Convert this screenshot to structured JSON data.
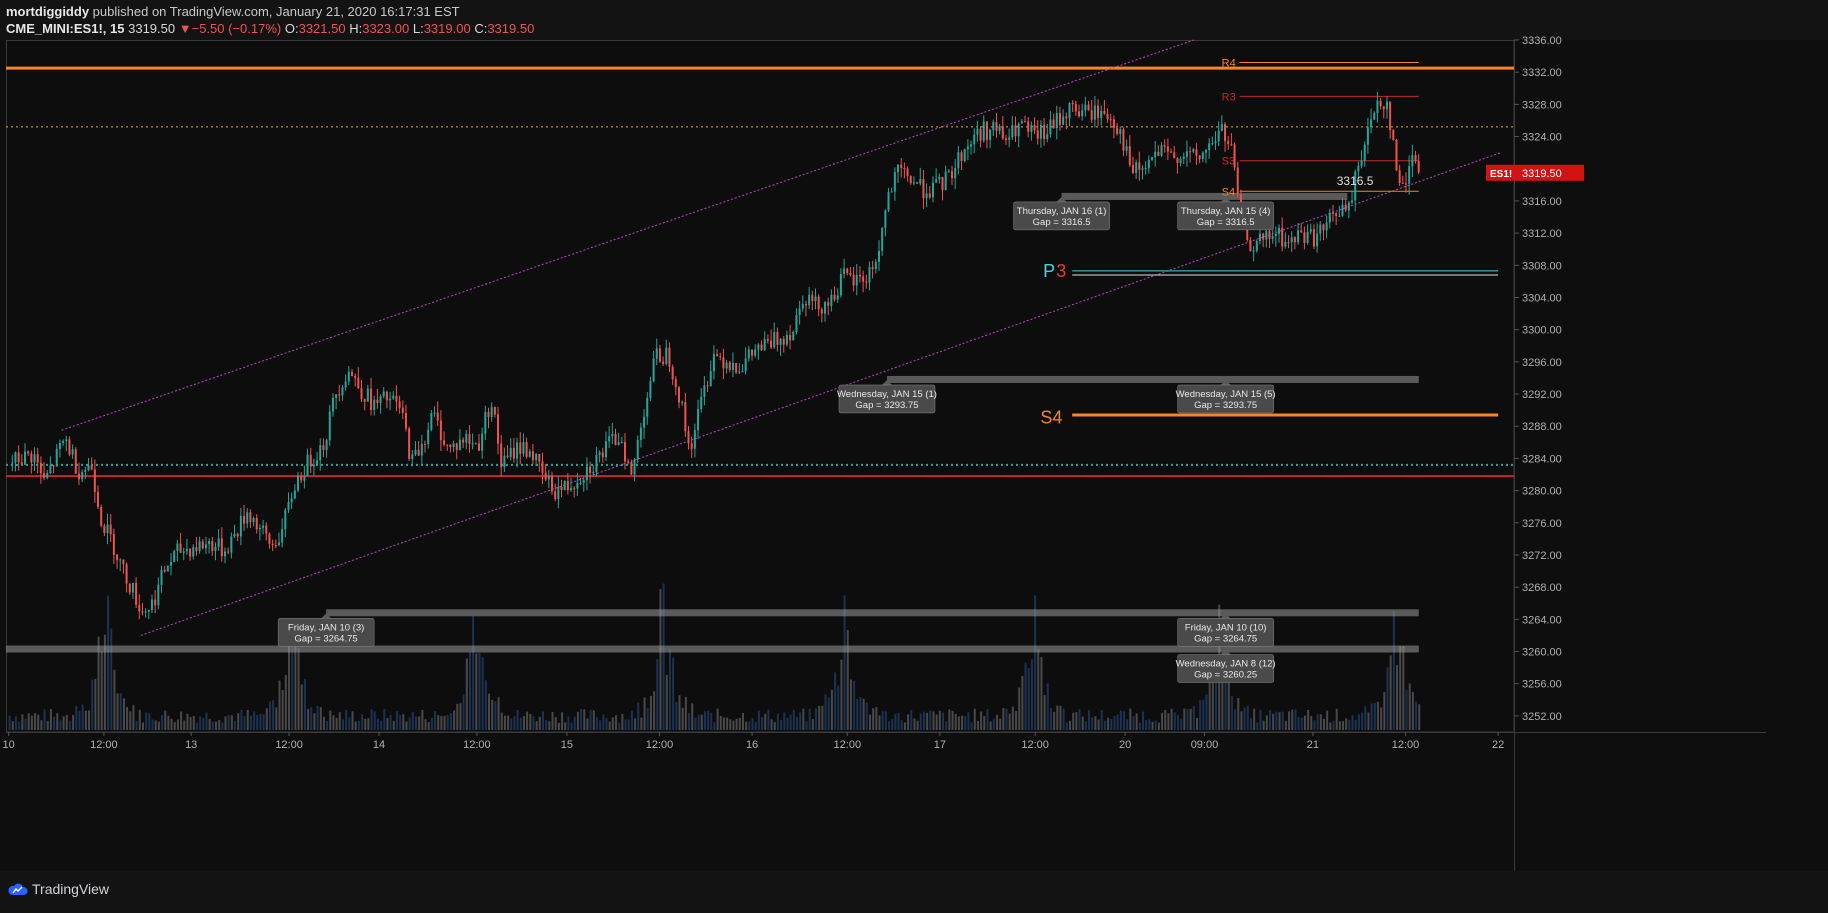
{
  "header": {
    "author": "mortdiggiddy",
    "published_text": "published on TradingView.com, January 21, 2020 16:17:31 EST",
    "symbol": "CME_MINI:ES1!, 15",
    "last": "3319.50",
    "change": "−5.50 (−0.17%)",
    "o_label": "O:",
    "o_value": "3321.50",
    "h_label": "H:",
    "h_value": "3323.00",
    "l_label": "L:",
    "l_value": "3319.00",
    "c_label": "C:",
    "c_value": "3319.50"
  },
  "footer": {
    "brand": "TradingView"
  },
  "colors": {
    "background": "#0e0e0e",
    "up": "#26a69a",
    "down": "#ef5350",
    "orange": "#f5842c",
    "channel": "#c040d0",
    "price_badge": "#d11313",
    "gap_bar": "#9a9a9a"
  },
  "chart_data": {
    "type": "candlestick",
    "symbol": "ES1!",
    "interval": "15",
    "ylim": [
      3250,
      3336
    ],
    "y_ticks": [
      "3336.00",
      "3332.00",
      "3328.00",
      "3324.00",
      "3320.00",
      "3316.00",
      "3312.00",
      "3308.00",
      "3304.00",
      "3300.00",
      "3296.00",
      "3292.00",
      "3288.00",
      "3284.00",
      "3280.00",
      "3276.00",
      "3272.00",
      "3268.00",
      "3264.00",
      "3260.00",
      "3256.00",
      "3252.00"
    ],
    "x_ticks": [
      {
        "label": "10",
        "t": 0
      },
      {
        "label": "12:00",
        "t": 3.6
      },
      {
        "label": "13",
        "t": 6.9
      },
      {
        "label": "12:00",
        "t": 10.6
      },
      {
        "label": "14",
        "t": 14.0
      },
      {
        "label": "12:00",
        "t": 17.7
      },
      {
        "label": "15",
        "t": 21.1
      },
      {
        "label": "12:00",
        "t": 24.6
      },
      {
        "label": "16",
        "t": 28.1
      },
      {
        "label": "12:00",
        "t": 31.7
      },
      {
        "label": "17",
        "t": 35.2
      },
      {
        "label": "12:00",
        "t": 38.8
      },
      {
        "label": "20",
        "t": 42.2
      },
      {
        "label": "09:00",
        "t": 45.2
      },
      {
        "label": "21",
        "t": 49.3
      },
      {
        "label": "12:00",
        "t": 52.8
      },
      {
        "label": "22",
        "t": 56.3
      }
    ],
    "x_range": [
      -0.1,
      56.9
    ],
    "path_points": [
      [
        0.0,
        3283.5
      ],
      [
        0.9,
        3284.5
      ],
      [
        1.3,
        3281.0
      ],
      [
        2.1,
        3286.5
      ],
      [
        2.6,
        3282.5
      ],
      [
        3.1,
        3283.0
      ],
      [
        3.5,
        3276.0
      ],
      [
        3.9,
        3273.5
      ],
      [
        4.3,
        3270.0
      ],
      [
        4.6,
        3268.0
      ],
      [
        5.0,
        3265.0
      ],
      [
        5.4,
        3266.0
      ],
      [
        5.9,
        3270.5
      ],
      [
        6.4,
        3272.5
      ],
      [
        7.0,
        3273.0
      ],
      [
        7.6,
        3273.5
      ],
      [
        8.1,
        3272.5
      ],
      [
        8.6,
        3275.0
      ],
      [
        9.0,
        3277.5
      ],
      [
        9.4,
        3275.5
      ],
      [
        9.9,
        3273.0
      ],
      [
        10.3,
        3275.0
      ],
      [
        10.8,
        3281.0
      ],
      [
        11.3,
        3283.5
      ],
      [
        11.9,
        3286.0
      ],
      [
        12.3,
        3292.0
      ],
      [
        12.8,
        3295.0
      ],
      [
        13.3,
        3292.5
      ],
      [
        13.8,
        3290.5
      ],
      [
        14.3,
        3291.5
      ],
      [
        14.8,
        3290.0
      ],
      [
        15.2,
        3283.5
      ],
      [
        15.6,
        3286.0
      ],
      [
        16.0,
        3289.5
      ],
      [
        16.6,
        3285.0
      ],
      [
        17.2,
        3286.5
      ],
      [
        17.7,
        3285.5
      ],
      [
        18.2,
        3291.5
      ],
      [
        18.6,
        3283.0
      ],
      [
        19.2,
        3285.5
      ],
      [
        19.7,
        3285.0
      ],
      [
        20.1,
        3282.0
      ],
      [
        20.6,
        3280.0
      ],
      [
        21.1,
        3280.5
      ],
      [
        21.6,
        3282.0
      ],
      [
        22.1,
        3283.5
      ],
      [
        22.6,
        3285.5
      ],
      [
        23.1,
        3287.0
      ],
      [
        23.5,
        3281.5
      ],
      [
        23.9,
        3289.0
      ],
      [
        24.4,
        3296.5
      ],
      [
        24.9,
        3297.0
      ],
      [
        25.3,
        3292.0
      ],
      [
        25.7,
        3285.0
      ],
      [
        26.1,
        3290.5
      ],
      [
        26.6,
        3297.0
      ],
      [
        27.2,
        3296.0
      ],
      [
        27.7,
        3295.5
      ],
      [
        28.2,
        3297.5
      ],
      [
        28.6,
        3298.0
      ],
      [
        29.1,
        3299.0
      ],
      [
        29.6,
        3300.0
      ],
      [
        30.0,
        3304.5
      ],
      [
        30.5,
        3303.0
      ],
      [
        31.0,
        3303.5
      ],
      [
        31.5,
        3306.5
      ],
      [
        31.9,
        3306.0
      ],
      [
        32.4,
        3306.5
      ],
      [
        32.8,
        3309.0
      ],
      [
        33.2,
        3316.5
      ],
      [
        33.6,
        3319.5
      ],
      [
        34.0,
        3319.0
      ],
      [
        34.5,
        3317.5
      ],
      [
        35.0,
        3317.5
      ],
      [
        35.5,
        3319.0
      ],
      [
        36.0,
        3322.0
      ],
      [
        36.6,
        3324.5
      ],
      [
        37.2,
        3325.0
      ],
      [
        37.7,
        3323.5
      ],
      [
        38.2,
        3325.5
      ],
      [
        38.7,
        3324.0
      ],
      [
        39.2,
        3324.5
      ],
      [
        39.6,
        3326.0
      ],
      [
        40.1,
        3327.5
      ],
      [
        40.6,
        3327.0
      ],
      [
        41.1,
        3327.0
      ],
      [
        41.6,
        3326.5
      ],
      [
        42.0,
        3324.5
      ],
      [
        42.4,
        3319.5
      ],
      [
        42.9,
        3320.0
      ],
      [
        43.4,
        3322.0
      ],
      [
        43.9,
        3321.5
      ],
      [
        44.4,
        3322.0
      ],
      [
        44.9,
        3321.0
      ],
      [
        45.4,
        3323.0
      ],
      [
        45.8,
        3325.0
      ],
      [
        46.2,
        3322.0
      ],
      [
        46.5,
        3314.5
      ],
      [
        46.9,
        3310.5
      ],
      [
        47.4,
        3311.0
      ],
      [
        47.9,
        3312.0
      ],
      [
        48.3,
        3310.5
      ],
      [
        48.8,
        3312.0
      ],
      [
        49.3,
        3311.5
      ],
      [
        49.7,
        3312.5
      ],
      [
        50.2,
        3315.0
      ],
      [
        50.6,
        3314.5
      ],
      [
        51.0,
        3321.0
      ],
      [
        51.4,
        3325.0
      ],
      [
        51.7,
        3328.5
      ],
      [
        52.1,
        3328.0
      ],
      [
        52.4,
        3320.0
      ],
      [
        52.7,
        3317.0
      ],
      [
        53.0,
        3322.5
      ],
      [
        53.3,
        3319.5
      ]
    ],
    "volume_peaks": [
      [
        3.6,
        0.85
      ],
      [
        10.7,
        0.75
      ],
      [
        17.7,
        0.9
      ],
      [
        24.7,
        0.8
      ],
      [
        31.6,
        0.85
      ],
      [
        38.7,
        0.8
      ],
      [
        45.8,
        0.7
      ],
      [
        52.4,
        0.75
      ]
    ],
    "horizontal_lines": [
      {
        "price": 3332.5,
        "color": "#f5842c",
        "style": "solid",
        "width": 3
      },
      {
        "price": 3325.2,
        "color": "#e7a91d",
        "style": "dotted",
        "width": 1
      },
      {
        "price": 3283.2,
        "color": "#26a69a",
        "style": "dotted",
        "width": 2
      },
      {
        "price": 3281.8,
        "color": "#c62828",
        "style": "solid",
        "width": 2
      }
    ],
    "channel": {
      "upper": {
        "t1": 2.0,
        "p1": 3287.5,
        "t2": 44.8,
        "p2": 3336.0
      },
      "lower": {
        "t1": 5.0,
        "p1": 3262.0,
        "t2": 56.4,
        "p2": 3322.0
      }
    },
    "pivot_labels": [
      {
        "text": "R4",
        "price": 3333.2,
        "color": "#f5842c",
        "t_start": 46.0,
        "t_end": 53.3
      },
      {
        "text": "R3",
        "price": 3329.0,
        "color": "#c62828",
        "t_start": 46.0,
        "t_end": 53.3
      },
      {
        "text": "S3",
        "price": 3321.0,
        "color": "#c62828",
        "t_start": 46.0,
        "t_end": 53.3
      },
      {
        "text": "S4",
        "price": 3317.2,
        "color": "#f5842c",
        "t_start": 46.0,
        "t_end": 53.3
      }
    ],
    "big_labels": [
      {
        "text": "P",
        "price": 3307.4,
        "color": "#4dd0e1"
      },
      {
        "text": "3",
        "price": 3307.4,
        "color": "#e53935"
      },
      {
        "text": "S4",
        "price": 3289.2,
        "color": "#f5842c"
      }
    ],
    "level_lines": [
      {
        "price": 3307.3,
        "color": "#4dd0e1",
        "t_start": 40.2,
        "t_end": 56.3,
        "width": 1
      },
      {
        "price": 3306.8,
        "color": "#e0e0e0",
        "t_start": 40.2,
        "t_end": 56.3,
        "width": 1
      },
      {
        "price": 3289.4,
        "color": "#f5842c",
        "t_start": 40.2,
        "t_end": 56.3,
        "width": 3
      }
    ],
    "gaps": [
      {
        "price": 3316.5,
        "t_start": 39.8,
        "t_end": 50.6
      },
      {
        "price": 3293.75,
        "t_start": 33.2,
        "t_end": 53.3
      },
      {
        "price": 3264.75,
        "t_start": 12.0,
        "t_end": 53.3
      },
      {
        "price": 3260.25,
        "t_start": -0.1,
        "t_end": 53.3
      }
    ],
    "gap_tooltips": [
      {
        "line1": "Thursday, JAN 16 (1)",
        "line2": "Gap = 3316.5",
        "t": 39.8,
        "price": 3316.5
      },
      {
        "line1": "Thursday, JAN 15 (4)",
        "line2": "Gap = 3316.5",
        "t": 46.0,
        "price": 3316.5
      },
      {
        "line1": "Wednesday, JAN 15 (1)",
        "line2": "Gap = 3293.75",
        "t": 33.2,
        "price": 3293.75
      },
      {
        "line1": "Wednesday, JAN 15 (5)",
        "line2": "Gap = 3293.75",
        "t": 46.0,
        "price": 3293.75
      },
      {
        "line1": "Friday, JAN 10 (3)",
        "line2": "Gap = 3264.75",
        "t": 12.0,
        "price": 3264.75
      },
      {
        "line1": "Friday, JAN 10 (10)",
        "line2": "Gap = 3264.75",
        "t": 46.0,
        "price": 3264.75
      },
      {
        "line1": "Wednesday, JAN 8 (12)",
        "line2": "Gap = 3260.25",
        "t": 46.0,
        "price": 3260.25
      }
    ],
    "annotation": {
      "text": "3316.5",
      "t": 50.2,
      "price": 3318.0
    },
    "last_price": {
      "label": "ES1!",
      "value": "3319.50",
      "price": 3319.5
    }
  }
}
